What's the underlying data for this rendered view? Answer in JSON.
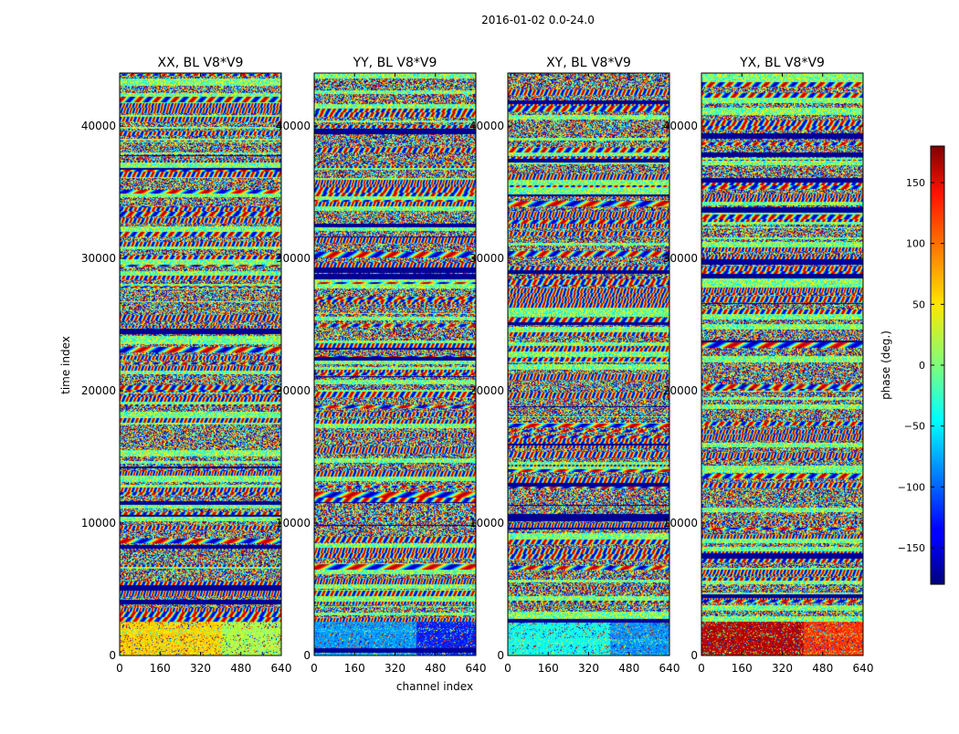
{
  "figure": {
    "suptitle": "2016-01-02 0.0-24.0",
    "xlabel": "channel index",
    "ylabel": "time index"
  },
  "chart_data": [
    {
      "type": "heatmap",
      "title": "XX, BL V8*V9",
      "x_ticks": [
        0,
        160,
        320,
        480,
        640
      ],
      "y_ticks": [
        0,
        10000,
        20000,
        30000,
        40000
      ],
      "xlim": [
        0,
        640
      ],
      "ylim": [
        0,
        44000
      ],
      "z_unit": "phase (deg.)",
      "low_region_phase": 60
    },
    {
      "type": "heatmap",
      "title": "YY, BL V8*V9",
      "x_ticks": [
        0,
        160,
        320,
        480,
        640
      ],
      "y_ticks": [
        0,
        10000,
        20000,
        30000,
        40000
      ],
      "xlim": [
        0,
        640
      ],
      "ylim": [
        0,
        44000
      ],
      "z_unit": "phase (deg.)",
      "low_region_phase": -80
    },
    {
      "type": "heatmap",
      "title": "XY, BL V8*V9",
      "x_ticks": [
        0,
        160,
        320,
        480,
        640
      ],
      "y_ticks": [
        0,
        10000,
        20000,
        30000,
        40000
      ],
      "xlim": [
        0,
        640
      ],
      "ylim": [
        0,
        44000
      ],
      "z_unit": "phase (deg.)",
      "low_region_phase": -40
    },
    {
      "type": "heatmap",
      "title": "YX, BL V8*V9",
      "x_ticks": [
        0,
        160,
        320,
        480,
        640
      ],
      "y_ticks": [
        0,
        10000,
        20000,
        30000,
        40000
      ],
      "xlim": [
        0,
        640
      ],
      "ylim": [
        0,
        44000
      ],
      "z_unit": "phase (deg.)",
      "low_region_phase": 160
    }
  ],
  "colorbar": {
    "label": "phase (deg.)",
    "range": [
      -180,
      180
    ],
    "ticks": [
      150,
      100,
      50,
      0,
      -50,
      -100,
      -150
    ],
    "tick_labels": [
      "150",
      "100",
      "50",
      "0",
      "−50",
      "−100",
      "−150"
    ],
    "colormap": "jet"
  }
}
